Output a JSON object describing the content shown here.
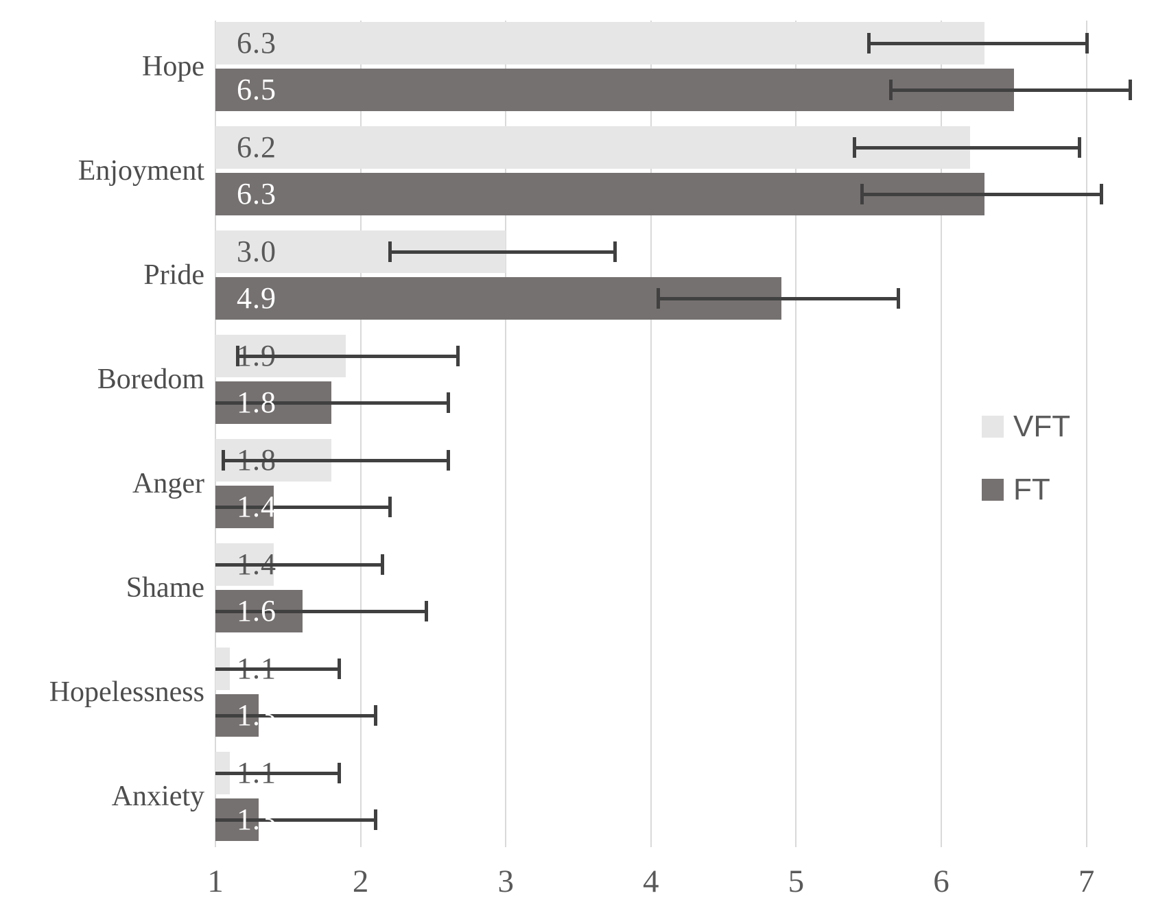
{
  "chart_data": {
    "type": "bar",
    "orientation": "horizontal",
    "title": "",
    "xlabel": "",
    "ylabel": "",
    "grid": true,
    "grid_color": "#d9d9d9",
    "error_bar_color": "#404040",
    "categories": [
      "Hope",
      "Enjoyment",
      "Pride",
      "Boredom",
      "Anger",
      "Shame",
      "Hopelessness",
      "Anxiety"
    ],
    "series": [
      {
        "name": "VFT",
        "color": "#e7e6e6",
        "label_color": "#595959",
        "values": [
          6.3,
          6.2,
          3.0,
          1.9,
          1.8,
          1.4,
          1.1,
          1.1
        ],
        "labels": [
          "6.3",
          "6.2",
          "3.0",
          "1.9",
          "1.8",
          "1.4",
          "1.1",
          "1.1"
        ],
        "error_low": [
          5.5,
          5.4,
          2.2,
          1.15,
          1.05,
          1.0,
          1.0,
          1.0
        ],
        "error_high": [
          7.0,
          6.95,
          3.75,
          2.67,
          2.6,
          2.15,
          1.85,
          1.85
        ],
        "error_low_cap": [
          true,
          true,
          true,
          true,
          true,
          false,
          false,
          false
        ]
      },
      {
        "name": "FT",
        "color": "#767171",
        "label_color": "#ffffff",
        "values": [
          6.5,
          6.3,
          4.9,
          1.8,
          1.4,
          1.6,
          1.3,
          1.3
        ],
        "labels": [
          "6.5",
          "6.3",
          "4.9",
          "1.8",
          "1.4",
          "1.6",
          "1.3",
          "1.3"
        ],
        "error_low": [
          5.65,
          5.45,
          4.05,
          1.0,
          1.0,
          1.0,
          1.0,
          1.0
        ],
        "error_high": [
          7.3,
          7.1,
          5.7,
          2.6,
          2.2,
          2.45,
          2.1,
          2.1
        ],
        "error_low_cap": [
          true,
          true,
          true,
          false,
          false,
          false,
          false,
          false
        ]
      }
    ],
    "x_axis": {
      "min": 1,
      "max": 7.4,
      "ticks": [
        1,
        2,
        3,
        4,
        5,
        6,
        7
      ]
    },
    "legend": [
      {
        "label": "VFT",
        "color": "#e7e6e6"
      },
      {
        "label": "FT",
        "color": "#767171"
      }
    ],
    "legend_position": "right-middle"
  }
}
